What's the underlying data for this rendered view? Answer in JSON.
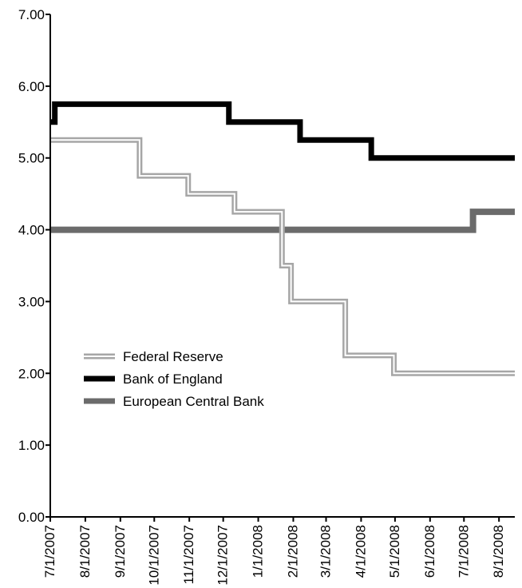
{
  "chart_data": {
    "type": "line",
    "title": "",
    "xlabel": "",
    "ylabel": "",
    "ylim": [
      0,
      7
    ],
    "yticks": [
      "0.00",
      "1.00",
      "2.00",
      "3.00",
      "4.00",
      "5.00",
      "6.00",
      "7.00"
    ],
    "xticks": [
      "7/1/2007",
      "8/1/2007",
      "9/1/2007",
      "10/1/2007",
      "11/1/2007",
      "12/1/2007",
      "1/1/2008",
      "2/1/2008",
      "3/1/2008",
      "4/1/2008",
      "5/1/2008",
      "6/1/2008",
      "7/1/2008",
      "8/1/2008"
    ],
    "xlim": [
      "2007-07-01",
      "2008-08-15"
    ],
    "grid": false,
    "legend_position": "center-left",
    "series": [
      {
        "name": "Federal Reserve",
        "color": "#a6a6a6",
        "style": "double-line",
        "steps": [
          {
            "date": "2007-07-01",
            "value": 5.25
          },
          {
            "date": "2007-09-18",
            "value": 4.75
          },
          {
            "date": "2007-10-31",
            "value": 4.5
          },
          {
            "date": "2007-12-11",
            "value": 4.25
          },
          {
            "date": "2008-01-22",
            "value": 3.5
          },
          {
            "date": "2008-01-30",
            "value": 3.0
          },
          {
            "date": "2008-03-18",
            "value": 2.25
          },
          {
            "date": "2008-04-30",
            "value": 2.0
          },
          {
            "date": "2008-08-15",
            "value": 2.0
          }
        ]
      },
      {
        "name": "Bank of England",
        "color": "#000000",
        "style": "solid",
        "steps": [
          {
            "date": "2007-07-01",
            "value": 5.5
          },
          {
            "date": "2007-07-05",
            "value": 5.75
          },
          {
            "date": "2007-12-06",
            "value": 5.5
          },
          {
            "date": "2008-02-07",
            "value": 5.25
          },
          {
            "date": "2008-04-10",
            "value": 5.0
          },
          {
            "date": "2008-08-15",
            "value": 5.0
          }
        ]
      },
      {
        "name": "European Central Bank",
        "color": "#6b6b6b",
        "style": "solid",
        "steps": [
          {
            "date": "2007-07-01",
            "value": 4.0
          },
          {
            "date": "2008-07-09",
            "value": 4.25
          },
          {
            "date": "2008-08-15",
            "value": 4.25
          }
        ]
      }
    ]
  }
}
